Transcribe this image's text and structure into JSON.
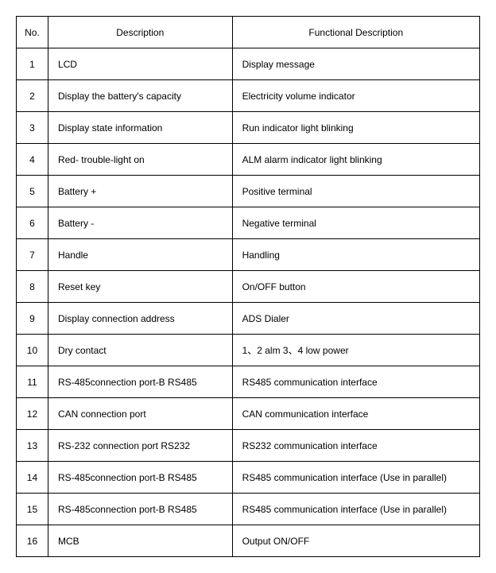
{
  "table": {
    "headers": {
      "no": "No.",
      "description": "Description",
      "functional": "Functional Description"
    },
    "rows": [
      {
        "no": "1",
        "desc": "LCD",
        "func": "Display message"
      },
      {
        "no": "2",
        "desc": "Display the battery's capacity",
        "func": "Electricity volume indicator"
      },
      {
        "no": "3",
        "desc": "Display state information",
        "func": "Run indicator light blinking"
      },
      {
        "no": "4",
        "desc": "Red- trouble-light on",
        "func": "ALM alarm indicator light blinking"
      },
      {
        "no": "5",
        "desc": "Battery +",
        "func": "Positive terminal"
      },
      {
        "no": "6",
        "desc": "Battery -",
        "func": "Negative terminal"
      },
      {
        "no": "7",
        "desc": "Handle",
        "func": "Handling"
      },
      {
        "no": "8",
        "desc": "Reset key",
        "func": "On/OFF button"
      },
      {
        "no": "9",
        "desc": "Display connection address",
        "func": "ADS Dialer"
      },
      {
        "no": "10",
        "desc": "Dry contact",
        "func": "1、2 alm       3、4 low power"
      },
      {
        "no": "11",
        "desc": "RS-485connection port-B RS485",
        "func": "RS485 communication interface"
      },
      {
        "no": "12",
        "desc": "CAN connection port",
        "func": "CAN communication interface"
      },
      {
        "no": "13",
        "desc": "RS-232 connection port RS232",
        "func": "RS232 communication interface"
      },
      {
        "no": "14",
        "desc": "RS-485connection port-B RS485",
        "func": "RS485 communication interface (Use in parallel)"
      },
      {
        "no": "15",
        "desc": "RS-485connection port-B RS485",
        "func": "RS485 communication interface (Use in parallel)"
      },
      {
        "no": "16",
        "desc": "MCB",
        "func": "Output ON/OFF"
      }
    ]
  }
}
